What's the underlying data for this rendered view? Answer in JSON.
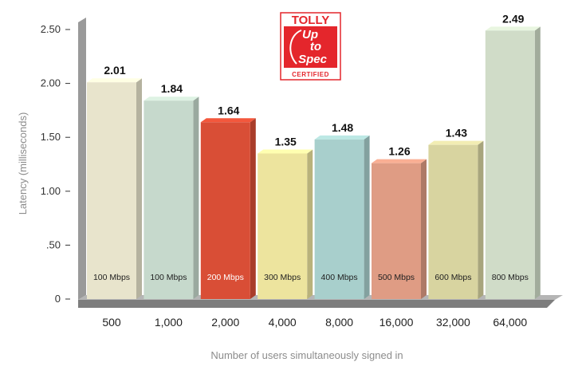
{
  "chart_data": {
    "type": "bar",
    "categories": [
      "500",
      "1,000",
      "2,000",
      "4,000",
      "8,000",
      "16,000",
      "32,000",
      "64,000"
    ],
    "values": [
      2.01,
      1.84,
      1.64,
      1.35,
      1.48,
      1.26,
      1.43,
      2.49
    ],
    "value_labels": [
      "2.01",
      "1.84",
      "1.64",
      "1.35",
      "1.48",
      "1.26",
      "1.43",
      "2.49"
    ],
    "bar_notes": [
      "100 Mbps",
      "100 Mbps",
      "200 Mbps",
      "300 Mbps",
      "400 Mbps",
      "500 Mbps",
      "600 Mbps",
      "800 Mbps"
    ],
    "colors": [
      "#e8e4cc",
      "#c6d9cc",
      "#d94e36",
      "#ede49e",
      "#a8cfcc",
      "#df9c84",
      "#d8d4a0",
      "#d0dcc8"
    ],
    "ylabel": "Latency (milliseconds)",
    "xlabel": "Number of users simultaneously signed in",
    "ylim": [
      0,
      2.5
    ],
    "yticks": [
      0,
      0.5,
      1.0,
      1.5,
      2.0,
      2.5
    ],
    "ytick_labels": [
      "0",
      ".50",
      "1.00",
      "1.50",
      "2.00",
      "2.50"
    ],
    "grid": false,
    "style": "3d"
  },
  "logo": {
    "top": "TOLLY",
    "middle": [
      "Up",
      "to",
      "Spec"
    ],
    "bottom": "CERTIFIED"
  }
}
